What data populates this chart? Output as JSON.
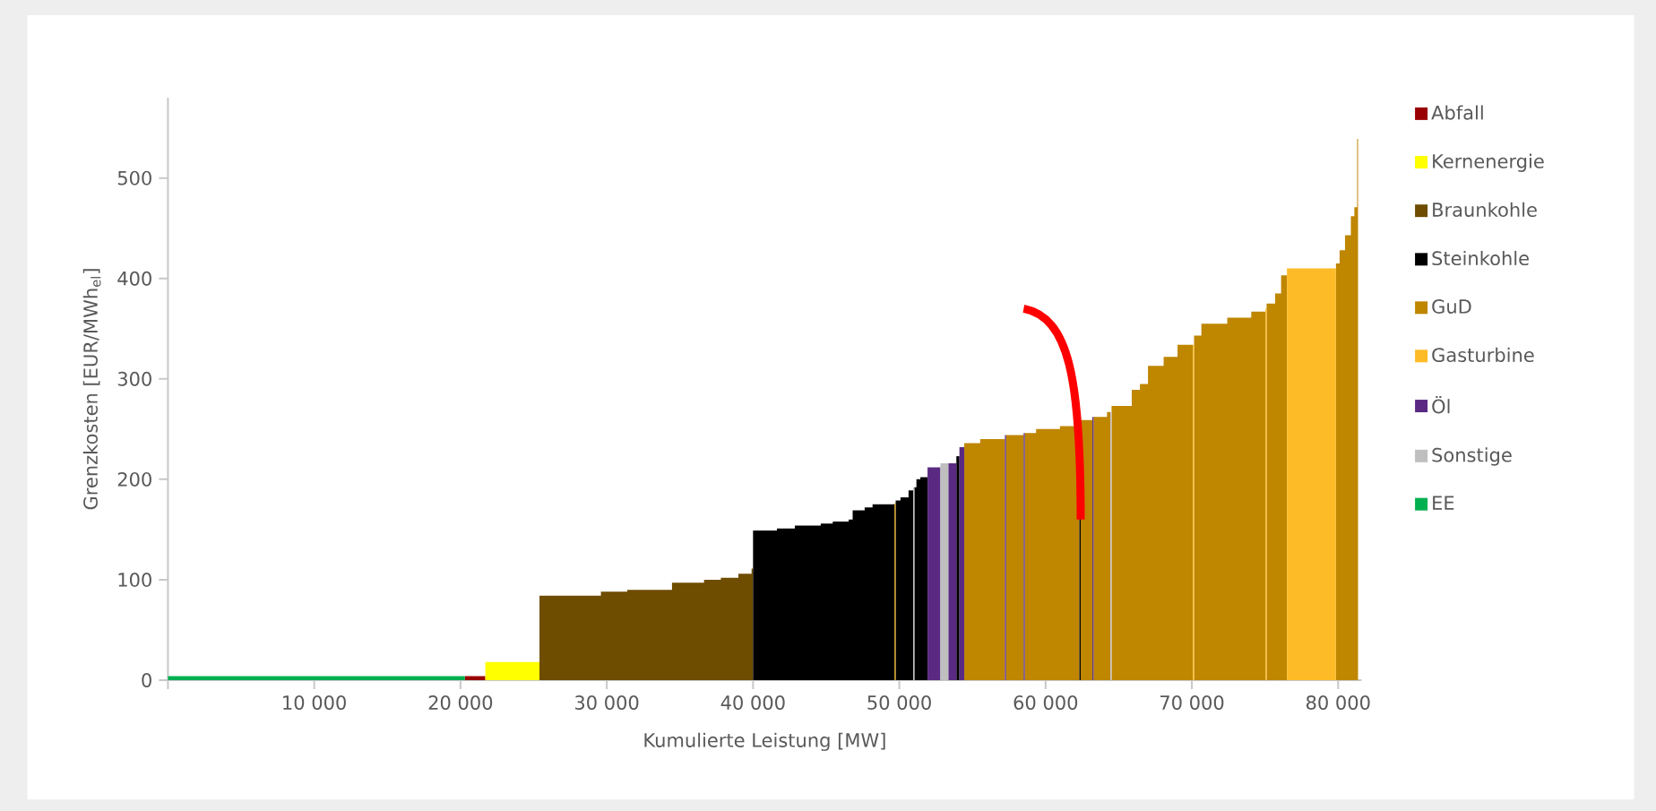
{
  "chart_data": {
    "type": "area",
    "xlabel": "Kumulierte Leistung [MW]",
    "ylabel": "Grenzkosten [EUR/MWh$_{el}$]",
    "xlim": [
      0,
      81600
    ],
    "ylim": [
      0,
      580
    ],
    "xticks": [
      {
        "value": 0,
        "label": null
      },
      {
        "value": 10000,
        "label": "10 000"
      },
      {
        "value": 20000,
        "label": "20 000"
      },
      {
        "value": 30000,
        "label": "30 000"
      },
      {
        "value": 40000,
        "label": "40 000"
      },
      {
        "value": 50000,
        "label": "50 000"
      },
      {
        "value": 60000,
        "label": "60 000"
      },
      {
        "value": 70000,
        "label": "70 000"
      },
      {
        "value": 80000,
        "label": "80 000"
      }
    ],
    "yticks": [
      0,
      100,
      200,
      300,
      400,
      500
    ],
    "legend": "right",
    "series": [
      {
        "name": "Abfall",
        "color": "#990000",
        "x": [
          20300,
          21700
        ],
        "values": [
          4,
          4
        ]
      },
      {
        "name": "Kernenergie",
        "color": "#ffff00",
        "x": [
          21700,
          25400
        ],
        "values": [
          18,
          18
        ]
      },
      {
        "name": "Braunkohle",
        "color": "#6e4c00",
        "x": [
          25400,
          29600,
          31400,
          34460,
          36650,
          37800,
          39000,
          39900,
          40000
        ],
        "values": [
          84,
          88,
          90,
          97,
          100,
          102,
          106,
          111,
          111
        ]
      },
      {
        "name": "Steinkohle",
        "color": "#000000",
        "x": [
          40000,
          41630,
          42860,
          44630,
          45450,
          46540,
          46810,
          47630,
          48170,
          49670,
          null,
          49750,
          50080,
          50630,
          50950,
          null,
          51030,
          51170,
          51440,
          51930,
          null,
          53900,
          54110,
          null,
          62300,
          62400
        ],
        "values": [
          149,
          151,
          154,
          156,
          158,
          160,
          169,
          172,
          175,
          175,
          null,
          179,
          182,
          189,
          189,
          null,
          192,
          200,
          202,
          202,
          null,
          223,
          223,
          null,
          253,
          253
        ]
      },
      {
        "name": "GuD",
        "color": "#bf8600",
        "x": [
          49670,
          49750,
          null,
          54440,
          55530,
          57220,
          null,
          57300,
          58500,
          null,
          58580,
          59350,
          60980,
          62300,
          null,
          62400,
          63200,
          null,
          63280,
          64200,
          64430,
          null,
          64510,
          65890,
          66450,
          67000,
          68070,
          69020,
          70070,
          null,
          70150,
          70650,
          72420,
          74060,
          75030,
          null,
          75110,
          75690,
          76100,
          76500,
          null,
          79850,
          80100,
          80470,
          80870,
          81110,
          81300,
          81360
        ],
        "values": [
          176,
          176,
          null,
          236,
          240,
          240,
          null,
          244,
          244,
          null,
          246,
          250,
          253,
          253,
          null,
          259,
          259,
          null,
          262,
          267,
          267,
          null,
          273,
          289,
          295,
          313,
          322,
          334,
          334,
          null,
          343,
          355,
          361,
          367,
          367,
          null,
          375,
          385,
          403,
          403,
          null,
          415,
          428,
          443,
          462,
          471,
          539,
          539
        ]
      },
      {
        "name": "Gasturbine",
        "color": "#fcbb27",
        "x": [
          70070,
          70150,
          null,
          75030,
          75110,
          null,
          76500,
          79850
        ],
        "values": [
          334,
          334,
          null,
          370,
          370,
          null,
          410,
          410
        ]
      },
      {
        "name": "Öl",
        "color": "#5a2a82",
        "x": [
          51930,
          52810,
          null,
          53350,
          53900,
          null,
          54110,
          54440,
          null,
          57220,
          57300,
          null,
          58500,
          58580,
          null,
          63200,
          63280
        ],
        "values": [
          212,
          212,
          null,
          216,
          216,
          null,
          232,
          232,
          null,
          244,
          244,
          null,
          246,
          246,
          null,
          262,
          262
        ]
      },
      {
        "name": "Sonstige",
        "color": "#bfbfbf",
        "x": [
          50950,
          51030,
          null,
          52810,
          53350,
          null,
          64430,
          64510
        ],
        "values": [
          192,
          192,
          null,
          216,
          216,
          null,
          267,
          267
        ]
      },
      {
        "name": "EE",
        "color": "#00b050",
        "x": [
          0,
          20300
        ],
        "values": [
          4,
          4
        ]
      }
    ]
  }
}
